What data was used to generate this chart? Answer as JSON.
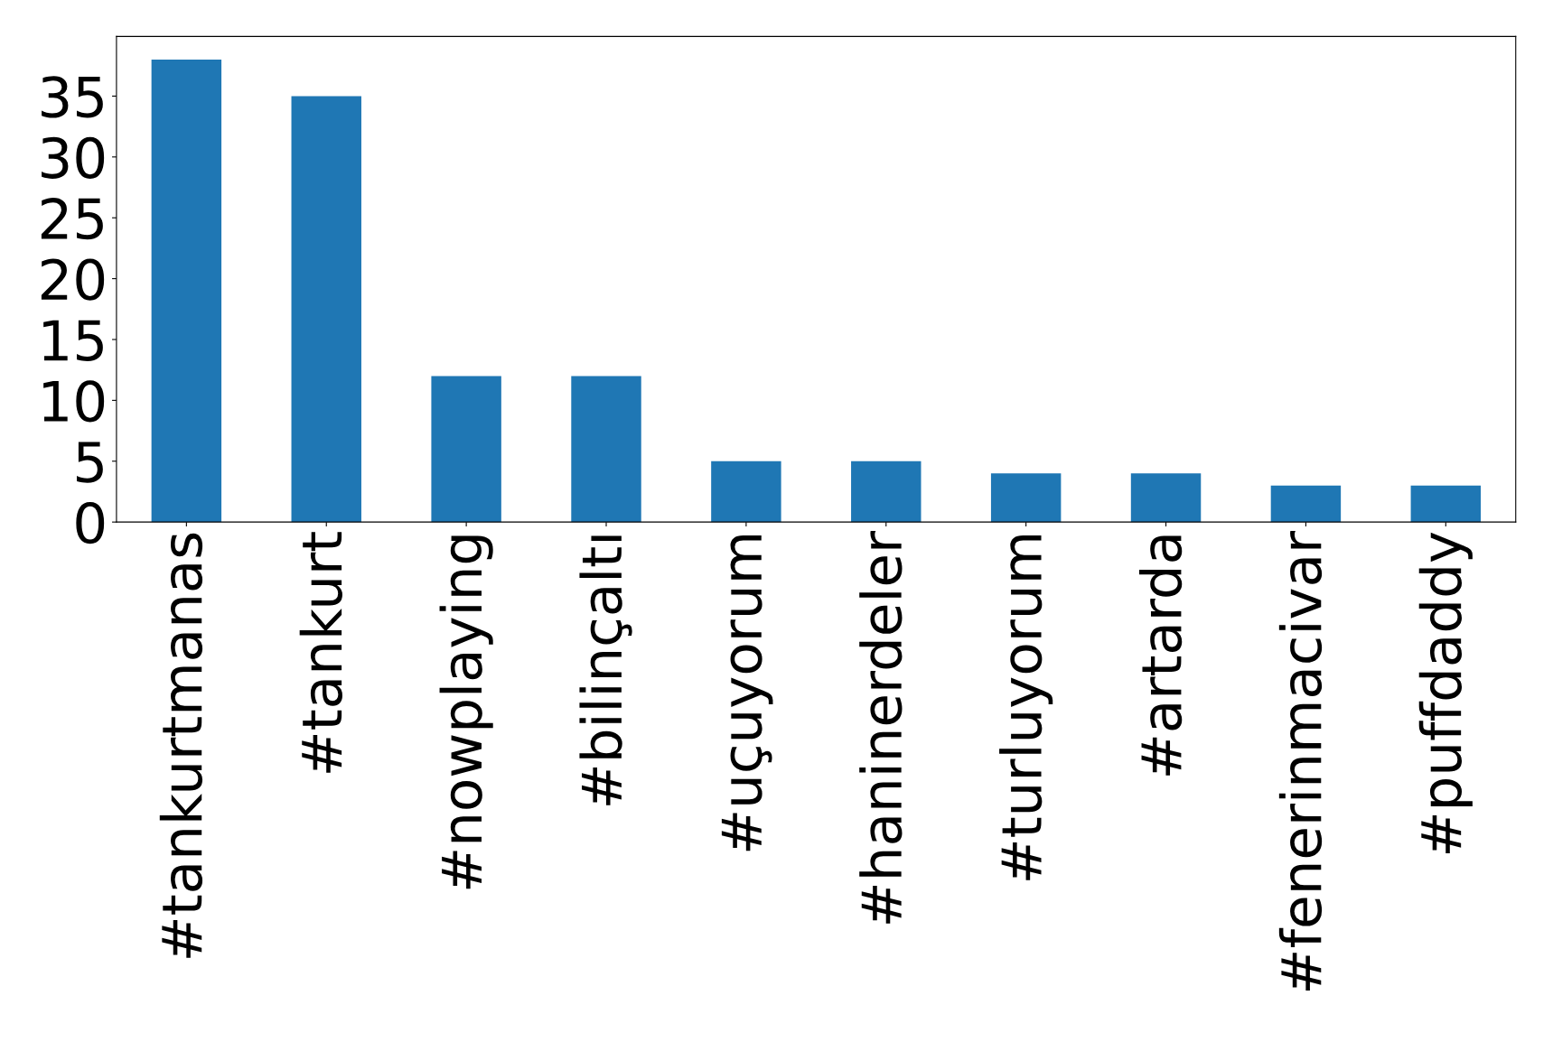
{
  "chart_data": {
    "type": "bar",
    "categories": [
      "#tankurtmanas",
      "#tankurt",
      "#nowplaying",
      "#bilinçaltı",
      "#uçuyorum",
      "#haninerdeler",
      "#turluyorum",
      "#artarda",
      "#fenerinmacivar",
      "#puffdaddy"
    ],
    "values": [
      38,
      35,
      12,
      12,
      5,
      5,
      4,
      4,
      3,
      3
    ],
    "color": "#1f77b4",
    "ylim": [
      0,
      39.9
    ],
    "yticks": [
      0,
      5,
      10,
      15,
      20,
      25,
      30,
      35
    ],
    "grid": false,
    "legend": false
  }
}
